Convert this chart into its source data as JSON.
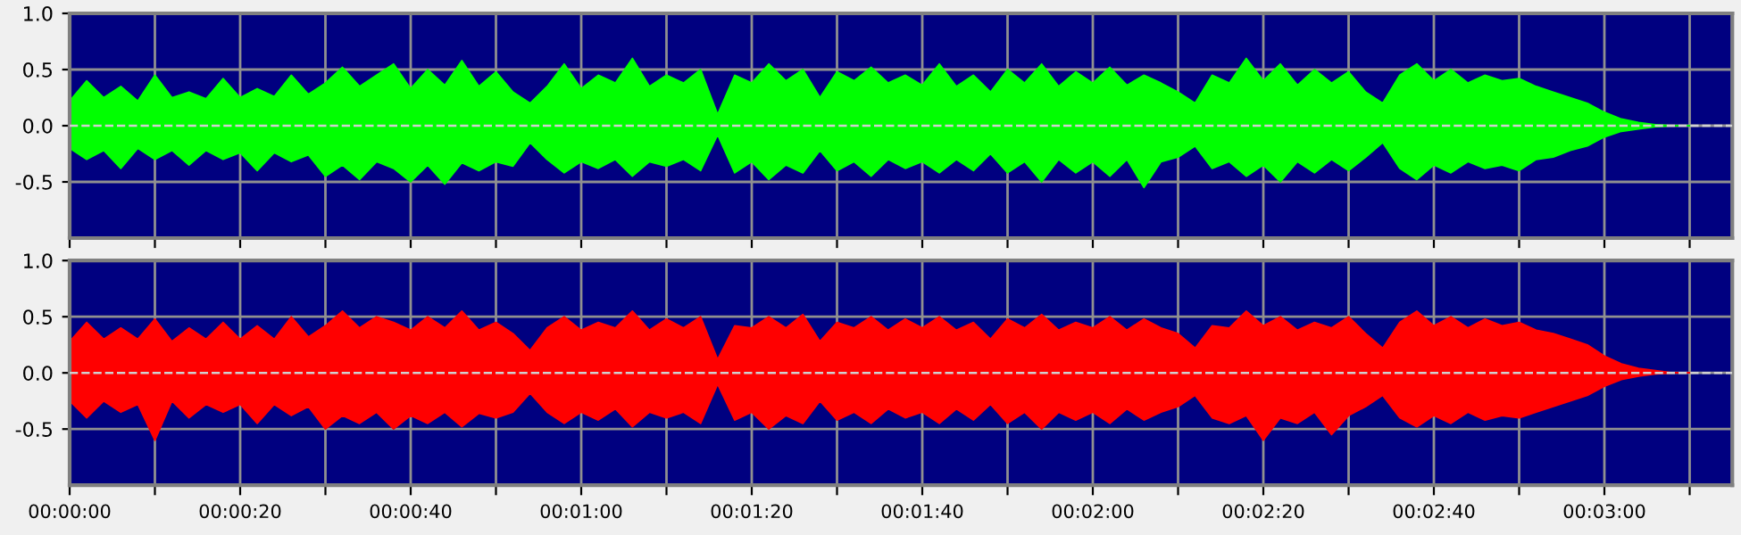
{
  "chart_data": [
    {
      "type": "area",
      "x": [
        0,
        2,
        4,
        6,
        8,
        10,
        12,
        14,
        16,
        18,
        20,
        22,
        24,
        26,
        28,
        30,
        32,
        34,
        36,
        38,
        40,
        42,
        44,
        46,
        48,
        50,
        52,
        54,
        56,
        58,
        60,
        62,
        64,
        66,
        68,
        70,
        72,
        74,
        76,
        78,
        80,
        82,
        84,
        86,
        88,
        90,
        92,
        94,
        96,
        98,
        100,
        102,
        104,
        106,
        108,
        110,
        112,
        114,
        116,
        118,
        120,
        122,
        124,
        126,
        128,
        130,
        132,
        134,
        136,
        138,
        140,
        142,
        144,
        146,
        148,
        150,
        152,
        154,
        156,
        158,
        160,
        162,
        164,
        166,
        168,
        170,
        172,
        174,
        176,
        178,
        180,
        182,
        184,
        186,
        188,
        190
      ],
      "series": [
        {
          "color": "#00ff00",
          "values": [
            0.22,
            0.4,
            0.25,
            0.35,
            0.22,
            0.45,
            0.25,
            0.3,
            0.24,
            0.42,
            0.25,
            0.33,
            0.26,
            0.45,
            0.28,
            0.38,
            0.52,
            0.35,
            0.45,
            0.55,
            0.33,
            0.5,
            0.36,
            0.58,
            0.35,
            0.48,
            0.3,
            0.2,
            0.35,
            0.55,
            0.33,
            0.45,
            0.38,
            0.6,
            0.35,
            0.45,
            0.38,
            0.5,
            0.1,
            0.45,
            0.38,
            0.55,
            0.4,
            0.5,
            0.25,
            0.48,
            0.4,
            0.52,
            0.38,
            0.45,
            0.36,
            0.55,
            0.35,
            0.45,
            0.3,
            0.5,
            0.38,
            0.55,
            0.35,
            0.48,
            0.38,
            0.52,
            0.36,
            0.45,
            0.38,
            0.3,
            0.2,
            0.45,
            0.38,
            0.6,
            0.4,
            0.55,
            0.36,
            0.5,
            0.38,
            0.48,
            0.3,
            0.2,
            0.45,
            0.55,
            0.4,
            0.5,
            0.38,
            0.45,
            0.4,
            0.42,
            0.35,
            0.3,
            0.25,
            0.2,
            0.12,
            0.06,
            0.03,
            0.01,
            0,
            0
          ]
        },
        {
          "color": "#00ff00",
          "values": [
            -0.2,
            -0.3,
            -0.22,
            -0.38,
            -0.2,
            -0.3,
            -0.22,
            -0.35,
            -0.22,
            -0.3,
            -0.24,
            -0.4,
            -0.24,
            -0.32,
            -0.26,
            -0.45,
            -0.35,
            -0.48,
            -0.32,
            -0.38,
            -0.5,
            -0.35,
            -0.52,
            -0.33,
            -0.4,
            -0.32,
            -0.36,
            -0.15,
            -0.3,
            -0.42,
            -0.32,
            -0.38,
            -0.3,
            -0.45,
            -0.32,
            -0.36,
            -0.3,
            -0.4,
            -0.08,
            -0.42,
            -0.32,
            -0.48,
            -0.35,
            -0.42,
            -0.22,
            -0.4,
            -0.32,
            -0.45,
            -0.3,
            -0.38,
            -0.32,
            -0.42,
            -0.3,
            -0.4,
            -0.25,
            -0.42,
            -0.32,
            -0.5,
            -0.3,
            -0.42,
            -0.32,
            -0.45,
            -0.3,
            -0.55,
            -0.32,
            -0.28,
            -0.18,
            -0.38,
            -0.32,
            -0.45,
            -0.35,
            -0.5,
            -0.32,
            -0.42,
            -0.3,
            -0.4,
            -0.28,
            -0.15,
            -0.38,
            -0.48,
            -0.35,
            -0.42,
            -0.32,
            -0.38,
            -0.35,
            -0.4,
            -0.3,
            -0.28,
            -0.22,
            -0.18,
            -0.1,
            -0.05,
            -0.03,
            -0.01,
            0,
            0
          ]
        }
      ],
      "xlim": [
        0,
        195
      ],
      "ylim": [
        -1,
        1
      ],
      "xticks": [
        0,
        10,
        20,
        30,
        40,
        50,
        60,
        70,
        80,
        90,
        100,
        110,
        120,
        130,
        140,
        150,
        160,
        170,
        180,
        190
      ],
      "yticks": [
        {
          "value": 1,
          "label": "1.0"
        },
        {
          "value": 0.5,
          "label": "0.5"
        },
        {
          "value": 0,
          "label": "0.0"
        },
        {
          "value": -0.5,
          "label": "-0.5"
        }
      ],
      "ref_lines": [
        {
          "axis": "y",
          "value": 0,
          "color": "#d0d0d0",
          "line_style": "dashed"
        }
      ],
      "grid": true,
      "tick_labels": "y"
    },
    {
      "type": "area",
      "x": [
        0,
        2,
        4,
        6,
        8,
        10,
        12,
        14,
        16,
        18,
        20,
        22,
        24,
        26,
        28,
        30,
        32,
        34,
        36,
        38,
        40,
        42,
        44,
        46,
        48,
        50,
        52,
        54,
        56,
        58,
        60,
        62,
        64,
        66,
        68,
        70,
        72,
        74,
        76,
        78,
        80,
        82,
        84,
        86,
        88,
        90,
        92,
        94,
        96,
        98,
        100,
        102,
        104,
        106,
        108,
        110,
        112,
        114,
        116,
        118,
        120,
        122,
        124,
        126,
        128,
        130,
        132,
        134,
        136,
        138,
        140,
        142,
        144,
        146,
        148,
        150,
        152,
        154,
        156,
        158,
        160,
        162,
        164,
        166,
        168,
        170,
        172,
        174,
        176,
        178,
        180,
        182,
        184,
        186,
        188,
        190
      ],
      "series": [
        {
          "color": "#ff0000",
          "values": [
            0.28,
            0.45,
            0.3,
            0.4,
            0.3,
            0.48,
            0.28,
            0.4,
            0.3,
            0.45,
            0.3,
            0.42,
            0.3,
            0.5,
            0.32,
            0.42,
            0.55,
            0.4,
            0.5,
            0.45,
            0.38,
            0.5,
            0.4,
            0.55,
            0.38,
            0.45,
            0.35,
            0.2,
            0.4,
            0.5,
            0.38,
            0.45,
            0.4,
            0.55,
            0.38,
            0.48,
            0.4,
            0.5,
            0.12,
            0.42,
            0.4,
            0.5,
            0.4,
            0.52,
            0.28,
            0.45,
            0.4,
            0.5,
            0.38,
            0.48,
            0.4,
            0.5,
            0.38,
            0.45,
            0.3,
            0.48,
            0.4,
            0.52,
            0.38,
            0.45,
            0.4,
            0.5,
            0.38,
            0.48,
            0.4,
            0.35,
            0.22,
            0.42,
            0.4,
            0.55,
            0.42,
            0.5,
            0.38,
            0.45,
            0.4,
            0.5,
            0.35,
            0.22,
            0.45,
            0.55,
            0.42,
            0.5,
            0.4,
            0.48,
            0.42,
            0.45,
            0.38,
            0.35,
            0.3,
            0.25,
            0.15,
            0.08,
            0.04,
            0.02,
            0,
            0
          ]
        },
        {
          "color": "#ff0000",
          "values": [
            -0.25,
            -0.4,
            -0.25,
            -0.35,
            -0.28,
            -0.6,
            -0.25,
            -0.4,
            -0.28,
            -0.35,
            -0.28,
            -0.45,
            -0.28,
            -0.38,
            -0.3,
            -0.5,
            -0.38,
            -0.45,
            -0.35,
            -0.5,
            -0.38,
            -0.45,
            -0.35,
            -0.48,
            -0.36,
            -0.4,
            -0.35,
            -0.18,
            -0.35,
            -0.45,
            -0.35,
            -0.42,
            -0.32,
            -0.48,
            -0.35,
            -0.4,
            -0.35,
            -0.45,
            -0.1,
            -0.42,
            -0.35,
            -0.5,
            -0.38,
            -0.45,
            -0.25,
            -0.42,
            -0.35,
            -0.45,
            -0.32,
            -0.4,
            -0.35,
            -0.45,
            -0.32,
            -0.42,
            -0.28,
            -0.45,
            -0.35,
            -0.5,
            -0.35,
            -0.42,
            -0.35,
            -0.45,
            -0.32,
            -0.42,
            -0.35,
            -0.3,
            -0.2,
            -0.4,
            -0.45,
            -0.38,
            -0.6,
            -0.4,
            -0.45,
            -0.35,
            -0.55,
            -0.38,
            -0.3,
            -0.2,
            -0.4,
            -0.48,
            -0.38,
            -0.45,
            -0.35,
            -0.42,
            -0.38,
            -0.4,
            -0.35,
            -0.3,
            -0.25,
            -0.2,
            -0.12,
            -0.06,
            -0.03,
            -0.01,
            0,
            0
          ]
        }
      ],
      "xlim": [
        0,
        195
      ],
      "ylim": [
        -1,
        1
      ],
      "xticks": [
        {
          "value": 0,
          "label": "00:00:00"
        },
        {
          "value": 10,
          "label": null
        },
        {
          "value": 20,
          "label": "00:00:20"
        },
        {
          "value": 30,
          "label": null
        },
        {
          "value": 40,
          "label": "00:00:40"
        },
        {
          "value": 50,
          "label": null
        },
        {
          "value": 60,
          "label": "00:01:00"
        },
        {
          "value": 70,
          "label": null
        },
        {
          "value": 80,
          "label": "00:01:20"
        },
        {
          "value": 90,
          "label": null
        },
        {
          "value": 100,
          "label": "00:01:40"
        },
        {
          "value": 110,
          "label": null
        },
        {
          "value": 120,
          "label": "00:02:00"
        },
        {
          "value": 130,
          "label": null
        },
        {
          "value": 140,
          "label": "00:02:20"
        },
        {
          "value": 150,
          "label": null
        },
        {
          "value": 160,
          "label": "00:02:40"
        },
        {
          "value": 170,
          "label": null
        },
        {
          "value": 180,
          "label": "00:03:00"
        },
        {
          "value": 190,
          "label": null
        }
      ],
      "yticks": [
        {
          "value": 1,
          "label": "1.0"
        },
        {
          "value": 0.5,
          "label": "0.5"
        },
        {
          "value": 0,
          "label": "0.0"
        },
        {
          "value": -0.5,
          "label": "-0.5"
        }
      ],
      "ref_lines": [
        {
          "axis": "y",
          "value": 0,
          "color": "#d0d0d0",
          "line_style": "dashed"
        }
      ],
      "grid": true
    }
  ]
}
